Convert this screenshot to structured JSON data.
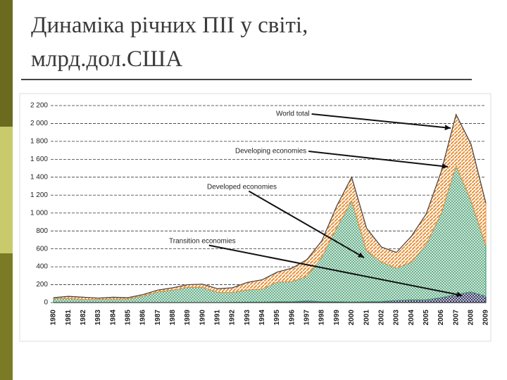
{
  "title_lines": [
    "Динаміка річних ПІІ у світі,",
    "млрд.дол.США"
  ],
  "chart_data": {
    "type": "stacked-area",
    "categories": [
      "1980",
      "1981",
      "1982",
      "1983",
      "1984",
      "1985",
      "1986",
      "1987",
      "1988",
      "1989",
      "1990",
      "1991",
      "1992",
      "1993",
      "1994",
      "1995",
      "1996",
      "1997",
      "1998",
      "1999",
      "2000",
      "2001",
      "2002",
      "2003",
      "2004",
      "2005",
      "2006",
      "2007",
      "2008",
      "2009"
    ],
    "series": [
      {
        "name": "Transition economies",
        "color": "#2b2b5e",
        "values": [
          0,
          0,
          0,
          0,
          0,
          0,
          0,
          0,
          0,
          0,
          0,
          0,
          3,
          6,
          6,
          10,
          10,
          20,
          10,
          10,
          7,
          10,
          12,
          25,
          30,
          31,
          55,
          90,
          120,
          70
        ]
      },
      {
        "name": "Developed economies",
        "color": "#3f9a6e",
        "values": [
          45,
          45,
          35,
          35,
          40,
          40,
          75,
          120,
          140,
          170,
          170,
          115,
          110,
          135,
          145,
          220,
          225,
          275,
          500,
          830,
          1130,
          570,
          440,
          360,
          420,
          620,
          940,
          1440,
          1020,
          570
        ]
      },
      {
        "name": "Developing economies",
        "color": "#e8913a",
        "values": [
          10,
          25,
          25,
          15,
          20,
          15,
          15,
          20,
          25,
          30,
          35,
          40,
          52,
          84,
          104,
          110,
          150,
          185,
          180,
          240,
          263,
          250,
          168,
          175,
          290,
          339,
          465,
          570,
          630,
          470
        ]
      }
    ],
    "annotations": [
      "World total",
      "Developing economies",
      "Developed economies",
      "Transition economies"
    ],
    "ylim": [
      0,
      2200
    ],
    "yticks": [
      0,
      200,
      400,
      600,
      800,
      {
        "value": 1000,
        "label": "1 000"
      },
      {
        "value": 1200,
        "label": "1 200"
      },
      {
        "value": 1400,
        "label": "1 400"
      },
      {
        "value": 1600,
        "label": "1 600"
      },
      {
        "value": 1800,
        "label": "1 800"
      },
      {
        "value": 2000,
        "label": "2 000"
      },
      {
        "value": 2200,
        "label": "2 200"
      }
    ],
    "grid": true
  }
}
